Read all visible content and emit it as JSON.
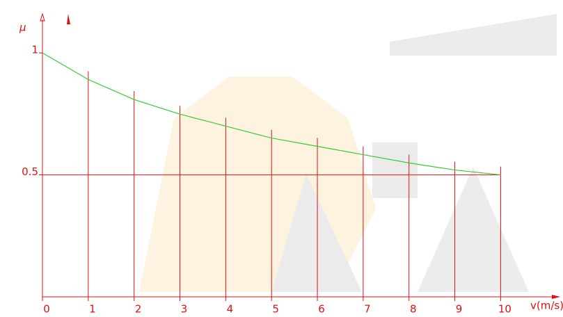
{
  "chart_data": {
    "type": "line",
    "ylabel": "μ",
    "xlabel": "v(m/s)",
    "x": [
      0,
      1,
      2,
      3,
      4,
      5,
      6,
      7,
      8,
      9,
      10
    ],
    "series": [
      {
        "name": "μ",
        "color": "#33cc33",
        "values": [
          1.0,
          0.891,
          0.809,
          0.749,
          0.7,
          0.651,
          0.617,
          0.583,
          0.549,
          0.52,
          0.5
        ]
      }
    ],
    "xlim": [
      0,
      11.3
    ],
    "ylim": [
      0,
      1.16
    ],
    "xticks": [
      0,
      1,
      2,
      3,
      4,
      5,
      6,
      7,
      8,
      9,
      10
    ],
    "yticks": [
      {
        "value": 0.5,
        "label": "0.5"
      },
      1
    ],
    "axis_color": "#e01010"
  }
}
